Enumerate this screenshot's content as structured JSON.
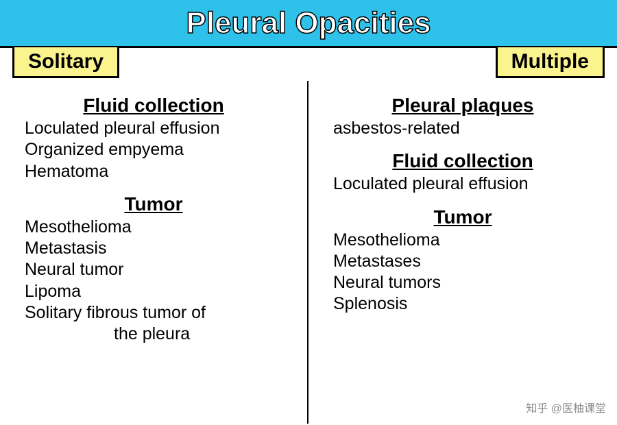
{
  "colors": {
    "header_bg": "#2ec2ea",
    "label_bg": "#fbf38e",
    "title_color": "#ffffff",
    "text_color": "#000000",
    "border_color": "#000000"
  },
  "title": "Pleural Opacities",
  "left": {
    "label": "Solitary",
    "sections": [
      {
        "heading": "Fluid collection",
        "items": [
          "Loculated pleural effusion",
          "Organized empyema",
          "Hematoma"
        ]
      },
      {
        "heading": "Tumor",
        "items": [
          "Mesothelioma",
          "Metastasis",
          "Neural tumor",
          "Lipoma",
          "Solitary fibrous tumor of|the pleura"
        ]
      }
    ]
  },
  "right": {
    "label": "Multiple",
    "sections": [
      {
        "heading": "Pleural plaques",
        "items": [
          "asbestos-related"
        ]
      },
      {
        "heading": "Fluid collection",
        "items": [
          "Loculated pleural effusion"
        ]
      },
      {
        "heading": "Tumor",
        "items": [
          "Mesothelioma",
          "Metastases",
          "Neural tumors",
          "Splenosis"
        ]
      }
    ]
  },
  "watermark": "知乎 @医柚课堂",
  "typography": {
    "title_fontsize": 44,
    "label_fontsize": 30,
    "heading_fontsize": 28,
    "item_fontsize": 25
  }
}
